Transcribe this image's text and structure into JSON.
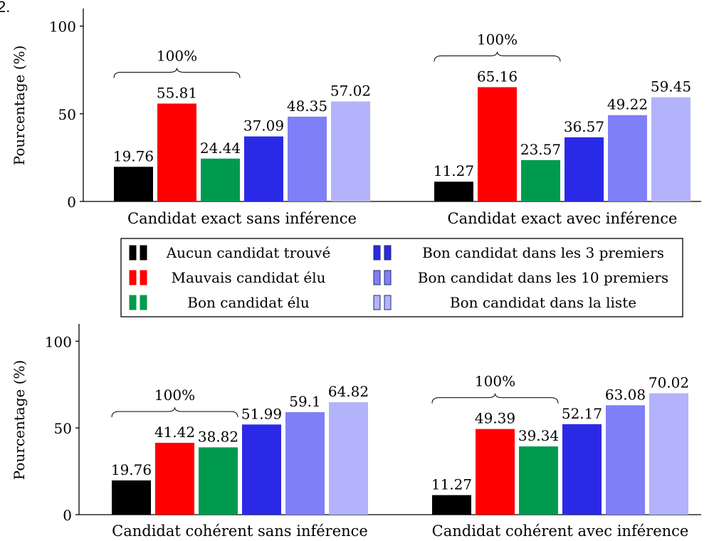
{
  "figure": {
    "panel_label": "2.",
    "panel_label_color": "#1a1aa8"
  },
  "legend": {
    "items": [
      {
        "label": "Aucun candidat trouvé",
        "color": "#000000"
      },
      {
        "label": "Mauvais candidat élu",
        "color": "#ff0000"
      },
      {
        "label": "Bon candidat élu",
        "color": "#009a4e"
      },
      {
        "label": "Bon candidat dans les 3 premiers",
        "color": "#2a2ae6"
      },
      {
        "label": "Bon candidat dans les 10 premiers",
        "color": "#7f7ff7"
      },
      {
        "label": "Bon candidat dans la liste",
        "color": "#b3b3fb"
      }
    ]
  },
  "chart_data": [
    {
      "type": "bar",
      "ylabel": "Pourcentage (%)",
      "ylim": [
        0,
        110
      ],
      "yticks": [
        0,
        50,
        100
      ],
      "grid": false,
      "bracket_label": "100%",
      "categories": [
        "Candidat exact sans inférence",
        "Candidat exact avec inférence"
      ],
      "series": [
        {
          "name": "Aucun candidat trouvé",
          "values": [
            19.76,
            11.27
          ]
        },
        {
          "name": "Mauvais candidat élu",
          "values": [
            55.81,
            65.16
          ]
        },
        {
          "name": "Bon candidat élu",
          "values": [
            24.44,
            23.57
          ]
        },
        {
          "name": "Bon candidat dans les 3 premiers",
          "values": [
            37.09,
            36.57
          ]
        },
        {
          "name": "Bon candidat dans les 10 premiers",
          "values": [
            48.35,
            49.22
          ]
        },
        {
          "name": "Bon candidat dans la liste",
          "values": [
            57.02,
            59.45
          ]
        }
      ],
      "value_labels": [
        [
          "19.76",
          "11.27"
        ],
        [
          "55.81",
          "65.16"
        ],
        [
          "24.44",
          "23.57"
        ],
        [
          "37.09",
          "36.57"
        ],
        [
          "48.35",
          "49.22"
        ],
        [
          "57.02",
          "59.45"
        ]
      ]
    },
    {
      "type": "bar",
      "ylabel": "Pourcentage (%)",
      "ylim": [
        0,
        110
      ],
      "yticks": [
        0,
        50,
        100
      ],
      "grid": false,
      "bracket_label": "100%",
      "categories": [
        "Candidat cohérent sans inférence",
        "Candidat cohérent avec inférence"
      ],
      "series": [
        {
          "name": "Aucun candidat trouvé",
          "values": [
            19.76,
            11.27
          ]
        },
        {
          "name": "Mauvais candidat élu",
          "values": [
            41.42,
            49.39
          ]
        },
        {
          "name": "Bon candidat élu",
          "values": [
            38.82,
            39.34
          ]
        },
        {
          "name": "Bon candidat dans les 3 premiers",
          "values": [
            51.99,
            52.17
          ]
        },
        {
          "name": "Bon candidat dans les 10 premiers",
          "values": [
            59.1,
            63.08
          ]
        },
        {
          "name": "Bon candidat dans la liste",
          "values": [
            64.82,
            70.02
          ]
        }
      ],
      "value_labels": [
        [
          "19.76",
          "11.27"
        ],
        [
          "41.42",
          "49.39"
        ],
        [
          "38.82",
          "39.34"
        ],
        [
          "51.99",
          "52.17"
        ],
        [
          "59.1",
          "63.08"
        ],
        [
          "64.82",
          "70.02"
        ]
      ]
    }
  ]
}
